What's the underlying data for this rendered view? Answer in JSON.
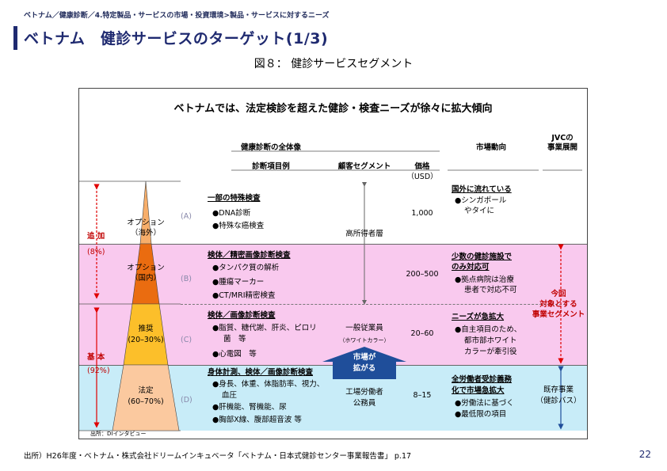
{
  "breadcrumb": "ベトナム／健康診断／4.特定製品・サービスの市場・投資環境>製品・サービスに対するニーズ",
  "title": "ベトナム　健診サービスのターゲット(1/3)",
  "figure_caption": "図８：  健診サービスセグメント",
  "diagram": {
    "headline": "ベトナムでは、法定検診を超えた健診・検査ニーズが徐々に拡大傾向",
    "headers": {
      "overall": "健康診断の全体像",
      "items": "診断項目例",
      "segment": "顧客セグメント",
      "price": "価格",
      "price_unit": "（USD）",
      "market": "市場動向",
      "jvc_line1": "JVCの",
      "jvc_line2": "事業展開"
    },
    "left_labels": {
      "add": "追 加",
      "add_pct": "(8%)",
      "base": "基 本",
      "base_pct": "(92%)"
    },
    "pyramid": [
      {
        "line1": "オプション",
        "line2": "（海外）",
        "color": "#f7ae6a"
      },
      {
        "line1": "オプション",
        "line2": "（国内）",
        "color": "#ea6c10"
      },
      {
        "line1": "推奨",
        "line2": "(20–30%)",
        "color": "#fcbf2a"
      },
      {
        "line1": "法定",
        "line2": "(60–70%)",
        "color": "#fbc99f"
      }
    ],
    "rows": [
      {
        "letter": "(A)",
        "title": "一部の特殊検査",
        "items": [
          "●DNA診断",
          "●特殊な癌検査"
        ],
        "price": "1,000",
        "market_title": "国外に流れている",
        "market_items": [
          "●シンガポール",
          "やタイに"
        ]
      },
      {
        "letter": "(B)",
        "title": "検体／精密画像診断検査",
        "items": [
          "●タンパク質の解析",
          "●腫瘍マーカー",
          "●CT/MRI精密検査"
        ],
        "price": "200–500",
        "market_title_l1": "少数の健診施設で",
        "market_title_l2": "のみ対応可",
        "market_items": [
          "●拠点病院は治療",
          "患者で対応不可"
        ]
      },
      {
        "letter": "(C)",
        "title": "検体／画像診断検査",
        "items": [
          "●脂質、糖代謝、肝炎、ピロリ",
          "菌　等",
          "●心電図　等"
        ],
        "price": "20–60",
        "market_title": "ニーズが急拡大",
        "market_items": [
          "●自主項目のため、",
          "都市部ホワイト",
          "カラーが牽引役"
        ]
      },
      {
        "letter": "(D)",
        "title": "身体計測、検体／画像診断検査",
        "items": [
          "●身長、体重、体脂肪率、視力、",
          "血圧",
          "●肝機能、腎機能、尿",
          "●胸部X線、腹部超音波 等"
        ],
        "price": "8–15",
        "market_title_l1": "全労働者受診義務",
        "market_title_l2": "化で市場急拡大",
        "market_items": [
          "●労働法に基づく",
          "●最低限の項目"
        ]
      }
    ],
    "segments": {
      "high": "高所得者層",
      "general": "一般従業員",
      "general_sub": "（ホワイトカラー）",
      "factory": "工場労働者",
      "public": "公務員"
    },
    "market_arrow": {
      "line1": "市場が",
      "line2": "拡がる"
    },
    "jvc": {
      "target_l1": "今回",
      "target_l2": "対象とする",
      "target_l3": "事業セグメント",
      "existing_l1": "既存事業",
      "existing_l2": "（健診バス）"
    },
    "source_small": "出所：DIインタビュー"
  },
  "footer_source": "出所）H26年度・ベトナム・株式会社ドリームインキュベータ「ベトナム・日本式健診センター事業報告書」 p.17",
  "page_number": "22"
}
